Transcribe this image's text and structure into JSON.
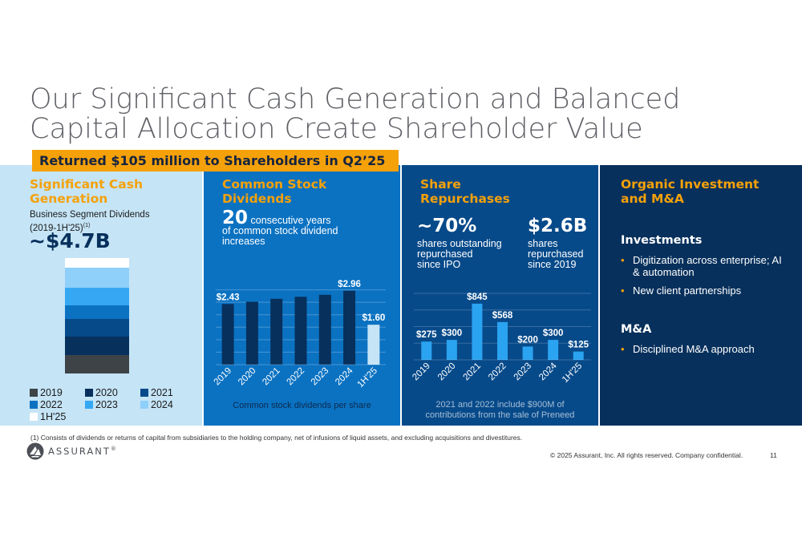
{
  "title_line1": "Our Significant Cash Generation and Balanced",
  "title_line2": "Capital Allocation Create Shareholder Value",
  "banner": "Returned $105 million to Shareholders in Q2’25",
  "cash": {
    "heading_line1": "Significant Cash",
    "heading_line2": "Generation",
    "subtitle_line1": "Business Segment Dividends",
    "subtitle_line2": "(2019-1H'25)",
    "subtitle_note": "(1)",
    "total": "~$4.7B",
    "legend": [
      "2019",
      "2020",
      "2021",
      "2022",
      "2023",
      "2024",
      "1H'25"
    ],
    "colors": [
      "#3e4348",
      "#07305c",
      "#074a8a",
      "#0b72c2",
      "#36a8f3",
      "#8fd0fa",
      "#ffffff"
    ]
  },
  "dividends": {
    "heading_line1": "Common Stock",
    "heading_line2": "Dividends",
    "lead_number": "20",
    "lead_text1": "consecutive years",
    "lead_text2": "of common stock dividend",
    "lead_text3": "increases",
    "caption": "Common stock dividends per share"
  },
  "repurchases": {
    "heading_line1": "Share",
    "heading_line2": "Repurchases",
    "stat1_value": "~70%",
    "stat1_l1": "shares outstanding",
    "stat1_l2": "repurchased",
    "stat1_l3": "since IPO",
    "stat2_value": "$2.6B",
    "stat2_l1": "shares",
    "stat2_l2": "repurchased",
    "stat2_l3": "since 2019",
    "caption_l1": "2021 and 2022 include $900M of",
    "caption_l2": "contributions from the sale of Preneed"
  },
  "organic": {
    "heading_line1": "Organic Investment",
    "heading_line2": "and M&A",
    "inv_title": "Investments",
    "inv_items": [
      "Digitization across enterprise; AI & automation",
      "New client partnerships"
    ],
    "ma_title": "M&A",
    "ma_items": [
      "Disciplined M&A approach"
    ]
  },
  "chart_data": [
    {
      "type": "bar",
      "stacked": true,
      "series": [
        {
          "name": "2019",
          "value_fraction": 0.16
        },
        {
          "name": "2020",
          "value_fraction": 0.16
        },
        {
          "name": "2021",
          "value_fraction": 0.15
        },
        {
          "name": "2022",
          "value_fraction": 0.12
        },
        {
          "name": "2023",
          "value_fraction": 0.15
        },
        {
          "name": "2024",
          "value_fraction": 0.18
        },
        {
          "name": "1H'25",
          "value_fraction": 0.08
        }
      ],
      "legend_position": "bottom"
    },
    {
      "type": "bar",
      "categories": [
        "2019",
        "2020",
        "2021",
        "2022",
        "2023",
        "2024",
        "1H'25"
      ],
      "values": [
        2.43,
        2.52,
        2.64,
        2.72,
        2.8,
        2.96,
        1.6
      ],
      "data_labels": [
        "$2.43",
        "",
        "",
        "",
        "",
        "$2.96",
        "$1.60"
      ],
      "ylim": [
        0,
        3.5
      ],
      "grid": true
    },
    {
      "type": "bar",
      "categories": [
        "2019",
        "2020",
        "2021",
        "2022",
        "2023",
        "2024",
        "1H'25"
      ],
      "values": [
        275,
        300,
        845,
        568,
        200,
        300,
        125
      ],
      "data_labels": [
        "$275",
        "$300",
        "$845",
        "$568",
        "$200",
        "$300",
        "$125"
      ],
      "ylim": [
        0,
        1000
      ],
      "grid": true
    }
  ],
  "footnote": "(1)   Consists of dividends or returns of capital from subsidiaries to the holding company, net of infusions of liquid assets, and excluding acquisitions and divestitures.",
  "logo_text": "ASSURANT",
  "logo_mark": "®",
  "copyright": "© 2025 Assurant, Inc. All rights reserved. Company confidential.",
  "page_number": "11"
}
